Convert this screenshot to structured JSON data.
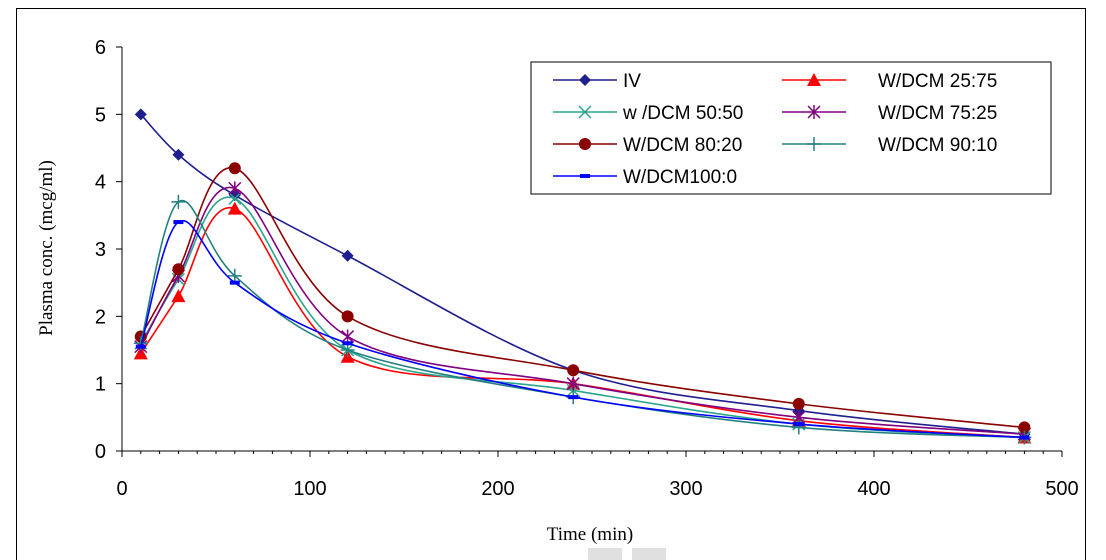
{
  "chart_data": {
    "type": "line",
    "xlabel": "Time (min)",
    "ylabel": "Plasma conc. (mcg/ml)",
    "xlim": [
      0,
      500
    ],
    "ylim": [
      0,
      6
    ],
    "xticks": [
      0,
      100,
      200,
      300,
      400,
      500
    ],
    "yticks": [
      0,
      1,
      2,
      3,
      4,
      5,
      6
    ],
    "grid": false,
    "legend_position": "top-right",
    "series": [
      {
        "name": "IV",
        "color": "#1f1f8f",
        "marker": "diamond",
        "x": [
          10,
          30,
          60,
          120,
          240,
          360,
          480
        ],
        "y": [
          5.0,
          4.4,
          3.8,
          2.9,
          1.2,
          0.6,
          0.25
        ]
      },
      {
        "name": "W/DCM 25:75",
        "color": "#ff0000",
        "marker": "triangle",
        "x": [
          10,
          30,
          60,
          120,
          240,
          360,
          480
        ],
        "y": [
          1.45,
          2.3,
          3.6,
          1.4,
          1.0,
          0.45,
          0.2
        ]
      },
      {
        "name": "w /DCM 50:50",
        "color": "#2ca58d",
        "marker": "x",
        "x": [
          10,
          30,
          60,
          120,
          240,
          360,
          480
        ],
        "y": [
          1.6,
          2.55,
          3.75,
          1.5,
          0.9,
          0.4,
          0.2
        ]
      },
      {
        "name": "W/DCM 75:25",
        "color": "#800080",
        "marker": "star",
        "x": [
          10,
          30,
          60,
          120,
          240,
          360,
          480
        ],
        "y": [
          1.55,
          2.6,
          3.9,
          1.7,
          1.0,
          0.5,
          0.25
        ]
      },
      {
        "name": "W/DCM 80:20",
        "color": "#8b0000",
        "marker": "circle",
        "x": [
          10,
          30,
          60,
          120,
          240,
          360,
          480
        ],
        "y": [
          1.7,
          2.7,
          4.2,
          2.0,
          1.2,
          0.7,
          0.35
        ]
      },
      {
        "name": "W/DCM 90:10",
        "color": "#238080",
        "marker": "plus",
        "x": [
          10,
          30,
          60,
          120,
          240,
          360,
          480
        ],
        "y": [
          1.6,
          3.7,
          2.6,
          1.5,
          0.8,
          0.35,
          0.2
        ]
      },
      {
        "name": "W/DCM100:0",
        "color": "#0000ff",
        "marker": "dash",
        "x": [
          10,
          30,
          60,
          120,
          240,
          360,
          480
        ],
        "y": [
          1.55,
          3.4,
          2.5,
          1.6,
          0.8,
          0.4,
          0.2
        ]
      }
    ]
  }
}
